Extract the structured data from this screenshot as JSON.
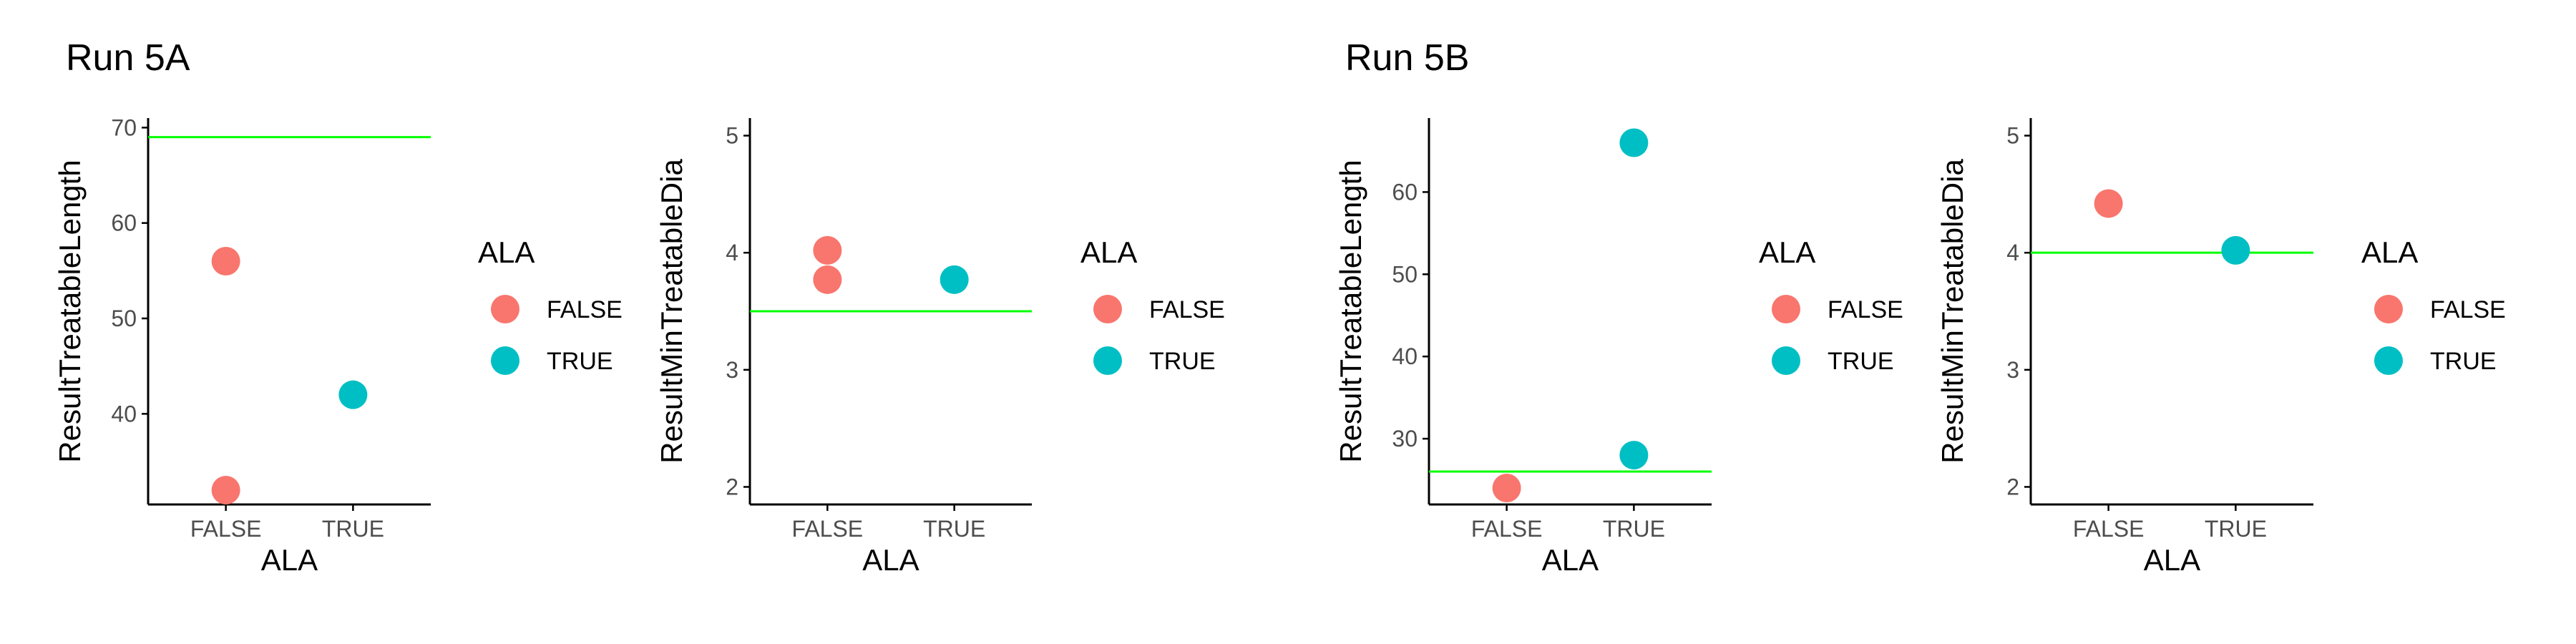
{
  "panels": [
    {
      "title": "Run 5A"
    },
    {
      "title": "Run 5B"
    }
  ],
  "colors": {
    "false_point": "#F8766D",
    "true_point": "#00BFC4",
    "reference_line": "#00FF00",
    "axis": "#000000",
    "tick_label": "#4D4D4D"
  },
  "chart_data": [
    {
      "type": "scatter",
      "panel": "Run 5A",
      "xlabel": "ALA",
      "ylabel": "ResultTreatableLength",
      "categories": [
        "FALSE",
        "TRUE"
      ],
      "ylim": [
        30.5,
        71
      ],
      "yticks": [
        40,
        50,
        60,
        70
      ],
      "reference_line": 69,
      "legend_title": "ALA",
      "legend_position": "right",
      "series": [
        {
          "name": "FALSE",
          "color": "#F8766D",
          "points": [
            {
              "x": "FALSE",
              "y": 56
            },
            {
              "x": "FALSE",
              "y": 32
            }
          ]
        },
        {
          "name": "TRUE",
          "color": "#00BFC4",
          "points": [
            {
              "x": "TRUE",
              "y": 42
            }
          ]
        }
      ]
    },
    {
      "type": "scatter",
      "panel": "Run 5A",
      "xlabel": "ALA",
      "ylabel": "ResultMinTreatableDia",
      "categories": [
        "FALSE",
        "TRUE"
      ],
      "ylim": [
        1.85,
        5.15
      ],
      "yticks": [
        2,
        3,
        4,
        5
      ],
      "reference_line": 3.5,
      "legend_title": "ALA",
      "legend_position": "right",
      "series": [
        {
          "name": "FALSE",
          "color": "#F8766D",
          "points": [
            {
              "x": "FALSE",
              "y": 4.02
            },
            {
              "x": "FALSE",
              "y": 3.77
            }
          ]
        },
        {
          "name": "TRUE",
          "color": "#00BFC4",
          "points": [
            {
              "x": "TRUE",
              "y": 3.77
            }
          ]
        }
      ]
    },
    {
      "type": "scatter",
      "panel": "Run 5B",
      "xlabel": "ALA",
      "ylabel": "ResultTreatableLength",
      "categories": [
        "FALSE",
        "TRUE"
      ],
      "ylim": [
        22,
        69
      ],
      "yticks": [
        30,
        40,
        50,
        60
      ],
      "reference_line": 26,
      "legend_title": "ALA",
      "legend_position": "right",
      "series": [
        {
          "name": "FALSE",
          "color": "#F8766D",
          "points": [
            {
              "x": "FALSE",
              "y": 24
            }
          ]
        },
        {
          "name": "TRUE",
          "color": "#00BFC4",
          "points": [
            {
              "x": "TRUE",
              "y": 66
            },
            {
              "x": "TRUE",
              "y": 28
            }
          ]
        }
      ]
    },
    {
      "type": "scatter",
      "panel": "Run 5B",
      "xlabel": "ALA",
      "ylabel": "ResultMinTreatableDia",
      "categories": [
        "FALSE",
        "TRUE"
      ],
      "ylim": [
        1.85,
        5.15
      ],
      "yticks": [
        2,
        3,
        4,
        5
      ],
      "reference_line": 4,
      "legend_title": "ALA",
      "legend_position": "right",
      "series": [
        {
          "name": "FALSE",
          "color": "#F8766D",
          "points": [
            {
              "x": "FALSE",
              "y": 4.42
            }
          ]
        },
        {
          "name": "TRUE",
          "color": "#00BFC4",
          "points": [
            {
              "x": "TRUE",
              "y": 4.02
            }
          ]
        }
      ]
    }
  ]
}
